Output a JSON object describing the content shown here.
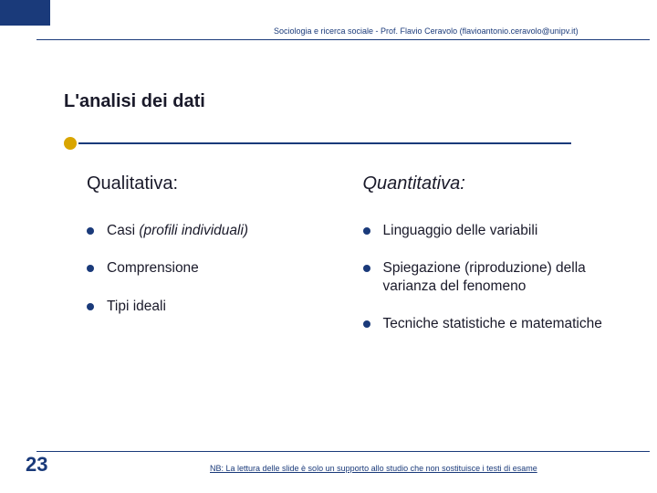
{
  "header": {
    "text": "Sociologia e ricerca sociale - Prof. Flavio Ceravolo (flavioantonio.ceravolo@unipv.it)"
  },
  "title": "L'analisi dei dati",
  "left": {
    "heading": "Qualitativa:",
    "items": [
      {
        "prefix": "Casi ",
        "italic": "(profili individuali)"
      },
      {
        "text": "Comprensione"
      },
      {
        "text": "Tipi ideali"
      }
    ]
  },
  "right": {
    "heading": "Quantitativa:",
    "items": [
      {
        "text": "Linguaggio delle variabili"
      },
      {
        "text": "Spiegazione (riproduzione) della varianza del fenomeno"
      },
      {
        "text": "Tecniche statistiche e matematiche"
      }
    ]
  },
  "slideNumber": "23",
  "footer": "NB: La lettura delle slide è solo un supporto allo studio che non sostituisce i testi di esame",
  "colors": {
    "accent": "#1a3a7a",
    "dot": "#d9a500",
    "text": "#1a1a2a",
    "bg": "#ffffff"
  }
}
